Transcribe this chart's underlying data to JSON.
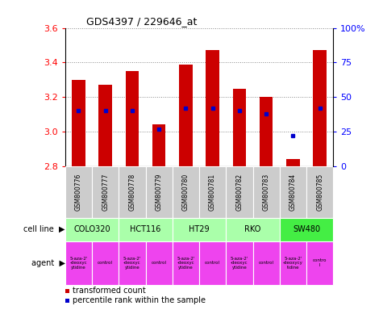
{
  "title": "GDS4397 / 229646_at",
  "samples": [
    "GSM800776",
    "GSM800777",
    "GSM800778",
    "GSM800779",
    "GSM800780",
    "GSM800781",
    "GSM800782",
    "GSM800783",
    "GSM800784",
    "GSM800785"
  ],
  "transformed_count": [
    3.3,
    3.27,
    3.35,
    3.04,
    3.39,
    3.47,
    3.25,
    3.2,
    2.84,
    3.47
  ],
  "percentile_rank": [
    0.4,
    0.4,
    0.4,
    0.27,
    0.42,
    0.42,
    0.4,
    0.38,
    0.22,
    0.42
  ],
  "ymin": 2.8,
  "ymax": 3.6,
  "y_ticks": [
    2.8,
    3.0,
    3.2,
    3.4,
    3.6
  ],
  "right_yticks": [
    0,
    25,
    50,
    75,
    100
  ],
  "right_ytick_labels": [
    "0",
    "25",
    "50",
    "75",
    "100%"
  ],
  "cell_lines": [
    {
      "name": "COLO320",
      "start": 0,
      "end": 2,
      "color": "#aaffaa"
    },
    {
      "name": "HCT116",
      "start": 2,
      "end": 4,
      "color": "#aaffaa"
    },
    {
      "name": "HT29",
      "start": 4,
      "end": 6,
      "color": "#aaffaa"
    },
    {
      "name": "RKO",
      "start": 6,
      "end": 8,
      "color": "#aaffaa"
    },
    {
      "name": "SW480",
      "start": 8,
      "end": 10,
      "color": "#44ee44"
    }
  ],
  "agents": [
    {
      "name": "5-aza-2'\n-deoxyc\nytidine",
      "color": "#ee44ee"
    },
    {
      "name": "control",
      "color": "#ee44ee"
    },
    {
      "name": "5-aza-2'\n-deoxyc\nytidine",
      "color": "#ee44ee"
    },
    {
      "name": "control",
      "color": "#ee44ee"
    },
    {
      "name": "5-aza-2'\n-deoxyc\nytidine",
      "color": "#ee44ee"
    },
    {
      "name": "control",
      "color": "#ee44ee"
    },
    {
      "name": "5-aza-2'\n-deoxyc\nytidine",
      "color": "#ee44ee"
    },
    {
      "name": "control",
      "color": "#ee44ee"
    },
    {
      "name": "5-aza-2'\n-deoxycy\ntidine",
      "color": "#ee44ee"
    },
    {
      "name": "contro\nl",
      "color": "#ee44ee"
    }
  ],
  "bar_color": "#cc0000",
  "dot_color": "#0000cc",
  "bar_width": 0.5,
  "gsm_bg_color": "#cccccc",
  "legend_items": [
    {
      "label": "transformed count",
      "color": "#cc0000"
    },
    {
      "label": "percentile rank within the sample",
      "color": "#0000cc"
    }
  ]
}
